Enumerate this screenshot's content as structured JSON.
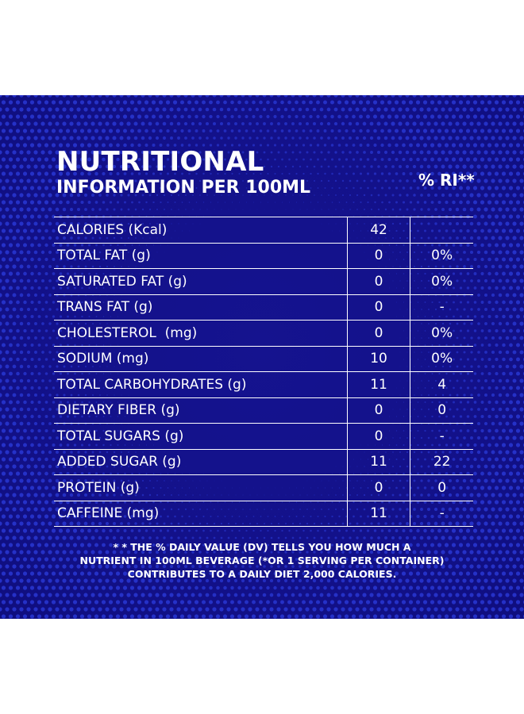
{
  "header": {
    "title_line1": "NUTRITIONAL",
    "title_line2": "INFORMATION PER 100ML",
    "ri_label": "% RI**"
  },
  "rows": [
    {
      "nutrient": "CALORIES (Kcal)",
      "value": "42",
      "ri": ""
    },
    {
      "nutrient": "TOTAL FAT (g)",
      "value": "0",
      "ri": "0%"
    },
    {
      "nutrient": "SATURATED FAT (g)",
      "value": "0",
      "ri": "0%"
    },
    {
      "nutrient": "TRANS FAT (g)",
      "value": "0",
      "ri": "-"
    },
    {
      "nutrient": "CHOLESTEROL  (mg)",
      "value": "0",
      "ri": "0%"
    },
    {
      "nutrient": "SODIUM (mg)",
      "value": "10",
      "ri": "0%"
    },
    {
      "nutrient": "TOTAL CARBOHYDRATES (g)",
      "value": "11",
      "ri": "4"
    },
    {
      "nutrient": "DIETARY FIBER (g)",
      "value": "0",
      "ri": "0"
    },
    {
      "nutrient": "TOTAL SUGARS (g)",
      "value": "0",
      "ri": "-"
    },
    {
      "nutrient": "ADDED SUGAR (g)",
      "value": "11",
      "ri": "22"
    },
    {
      "nutrient": "PROTEIN (g)",
      "value": "0",
      "ri": "0"
    },
    {
      "nutrient": "CAFFEINE (mg)",
      "value": "11",
      "ri": "-"
    }
  ],
  "footnote": {
    "line1": "* * THE % DAILY VALUE (DV) TELLS YOU HOW MUCH A",
    "line2": "NUTRIENT IN 100ML BEVERAGE (*OR 1 SERVING PER CONTAINER)",
    "line3": "CONTRIBUTES TO A DAILY DIET 2,000 CALORIES."
  },
  "colors": {
    "background": "#13118a",
    "dots": "#2a3ad8",
    "text": "#ffffff",
    "page": "#ffffff"
  }
}
